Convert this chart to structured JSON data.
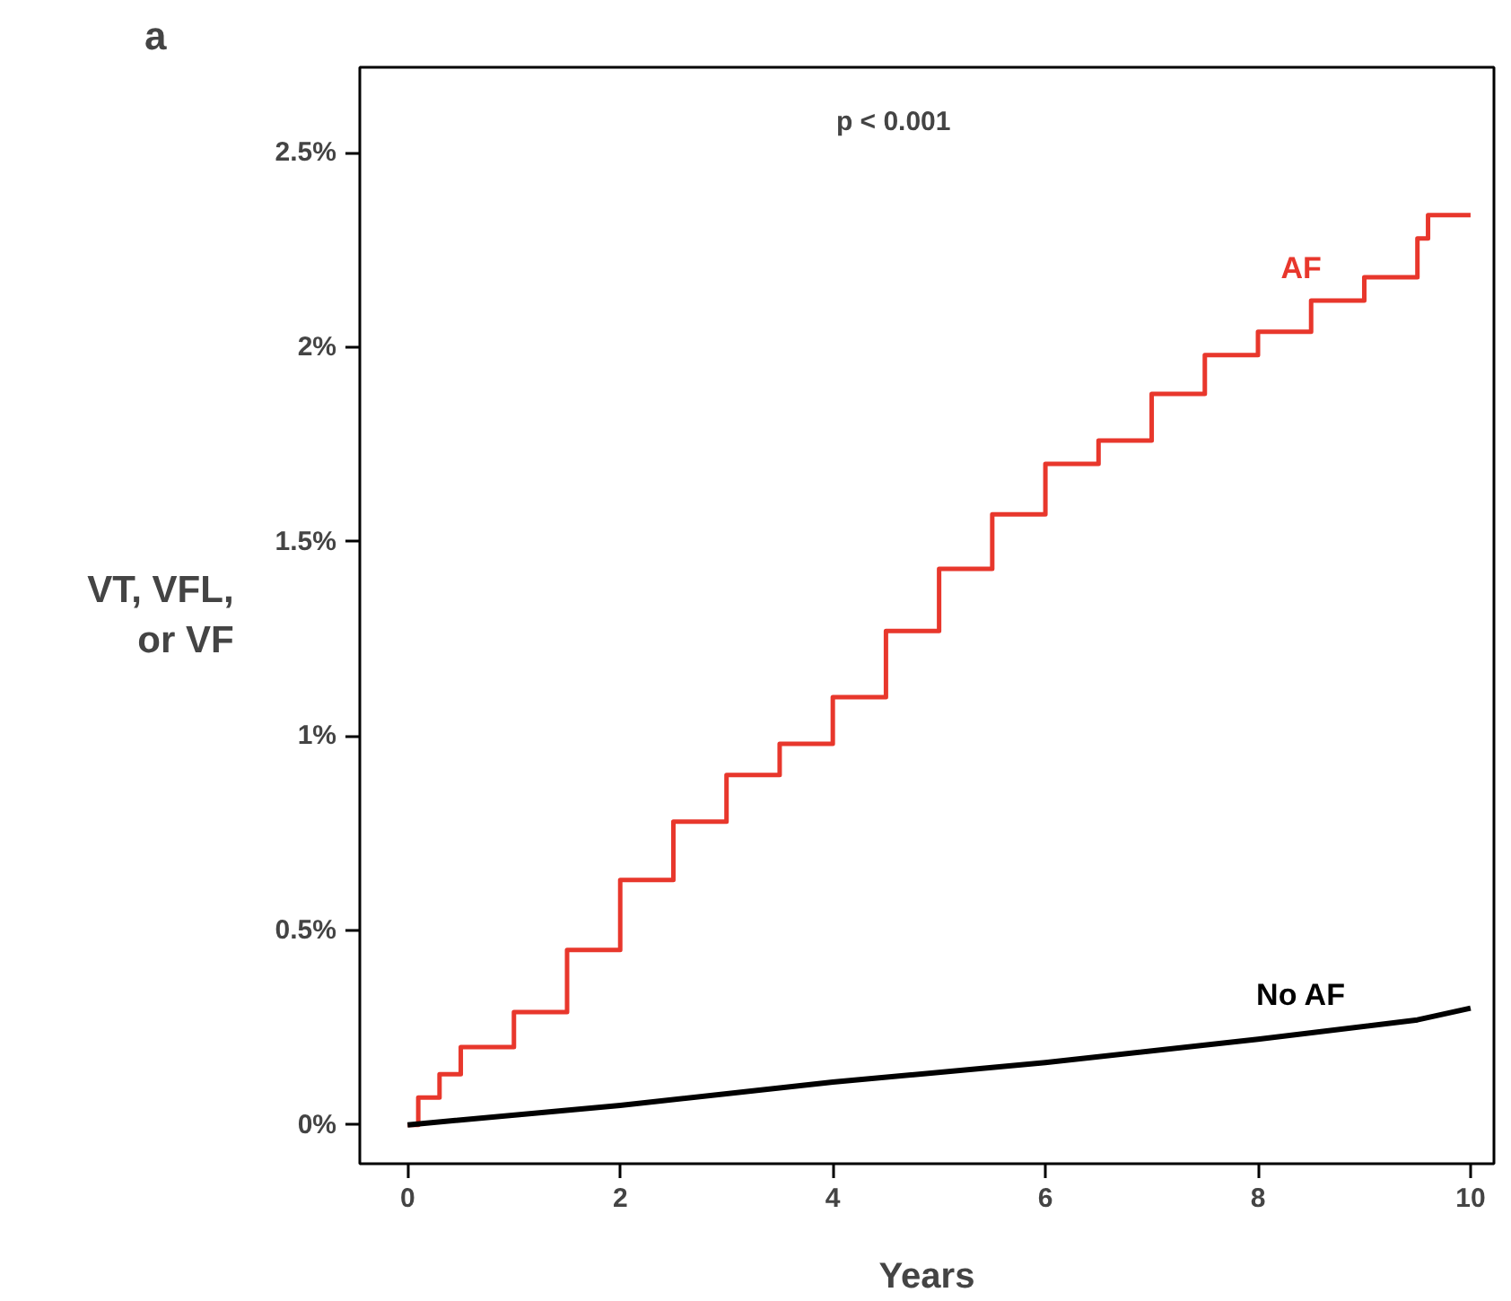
{
  "chart_data": {
    "type": "step",
    "title": "a",
    "xlabel": "Years",
    "ylabel": "VT, VFL, or VF",
    "xlim": [
      -0.45,
      10.22
    ],
    "ylim": [
      -0.1,
      2.72
    ],
    "xticks": [
      0,
      2,
      4,
      6,
      8,
      10
    ],
    "yticks": [
      {
        "value": 0,
        "label": "0%"
      },
      {
        "value": 0.5,
        "label": "0.5%"
      },
      {
        "value": 1,
        "label": "1%"
      },
      {
        "value": 1.5,
        "label": "1.5%"
      },
      {
        "value": 2,
        "label": "2%"
      },
      {
        "value": 2.5,
        "label": "2.5%"
      }
    ],
    "grid": false,
    "annotations": [
      "p < 0.001"
    ],
    "series": [
      {
        "name": "AF",
        "color": "#e8372c",
        "x": [
          0,
          0.1,
          0.3,
          0.5,
          1,
          1.5,
          2,
          2.5,
          3,
          3.5,
          4,
          4.5,
          5,
          5.5,
          6,
          6.5,
          7,
          7.5,
          8,
          8.5,
          9,
          9.5,
          9.6,
          10
        ],
        "values": [
          0,
          0.07,
          0.13,
          0.2,
          0.29,
          0.45,
          0.63,
          0.78,
          0.9,
          0.98,
          1.1,
          1.27,
          1.43,
          1.57,
          1.7,
          1.76,
          1.88,
          1.98,
          2.04,
          2.12,
          2.18,
          2.28,
          2.34,
          2.34
        ]
      },
      {
        "name": "No AF",
        "color": "#000000",
        "type": "line",
        "x": [
          0,
          2,
          4,
          6,
          8,
          9.5,
          10
        ],
        "values": [
          0,
          0.05,
          0.11,
          0.16,
          0.22,
          0.27,
          0.3
        ]
      }
    ]
  }
}
